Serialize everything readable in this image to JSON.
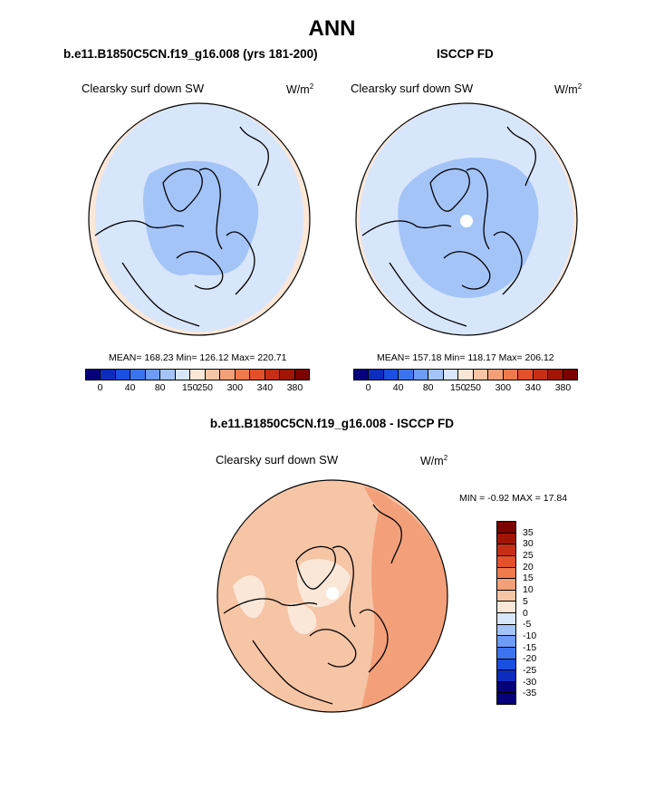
{
  "figure": {
    "title": "ANN",
    "bottom_title": "b.e11.B1850C5CN.f19_g16.008 - ISCCP FD"
  },
  "panels": [
    {
      "title": "b.e11.B1850C5CN.f19_g16.008 (yrs 181-200)",
      "variable": "Clearsky surf down SW",
      "units_base": "W/m",
      "units_exp": "2",
      "stats": "MEAN= 168.23  Min= 126.12  Max= 220.71"
    },
    {
      "title": "ISCCP FD",
      "variable": "Clearsky surf down SW",
      "units_base": "W/m",
      "units_exp": "2",
      "stats": "MEAN= 157.18  Min= 118.17  Max= 206.12"
    },
    {
      "title": "",
      "variable": "Clearsky surf down SW",
      "units_base": "W/m",
      "units_exp": "2",
      "stats": "MIN =  -0.92 MAX =  17.84"
    }
  ],
  "colorbar_main": {
    "colors": [
      "#06007a",
      "#0c2cbe",
      "#1a4fe0",
      "#3c74f0",
      "#6d9bf5",
      "#a4c4f8",
      "#d8e6fb",
      "#fbe7d8",
      "#f6c5a6",
      "#f3a07a",
      "#ef7a4e",
      "#e4502a",
      "#c62e15",
      "#a11505",
      "#7a0300"
    ],
    "tick_labels": [
      "0",
      "40",
      "80",
      "150",
      "250",
      "300",
      "340",
      "380"
    ]
  },
  "colorbar_diff": {
    "colors": [
      "#7a0300",
      "#a11505",
      "#c62e15",
      "#e4502a",
      "#ef7a4e",
      "#f3a07a",
      "#f6c5a6",
      "#fbe7d8",
      "#d8e6fb",
      "#a4c4f8",
      "#6d9bf5",
      "#3c74f0",
      "#1a4fe0",
      "#0c2cbe",
      "#06007a"
    ],
    "tick_labels": [
      "35",
      "30",
      "25",
      "20",
      "15",
      "10",
      "5",
      "0",
      "-5",
      "-10",
      "-15",
      "-20",
      "-25",
      "-30",
      "-35"
    ]
  },
  "map_colors": {
    "light_blue": "#d8e6fb",
    "mid_blue": "#a4c4f8",
    "peach": "#fbe7d8",
    "diff_base": "#f6c5a6",
    "diff_dark": "#f3a07a",
    "diff_light": "#fbe7d8"
  }
}
